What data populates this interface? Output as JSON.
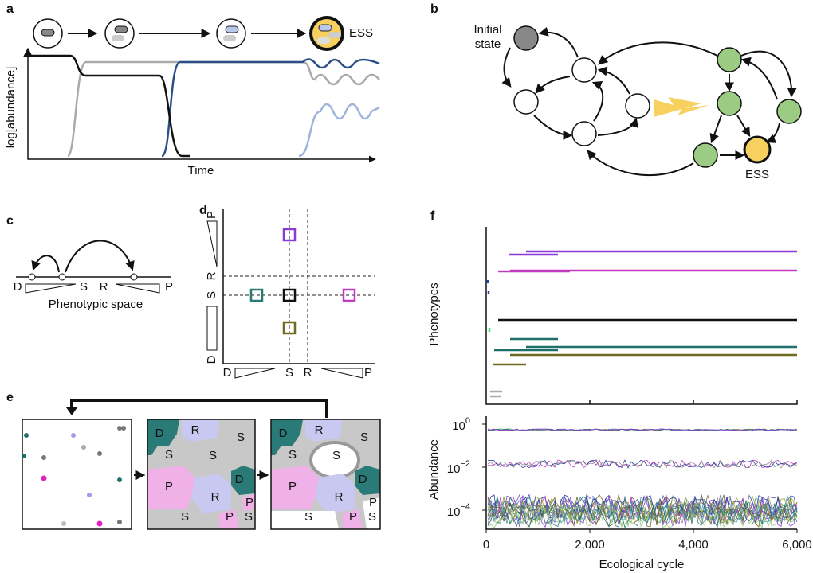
{
  "panels": {
    "a": {
      "label": "a",
      "ess": "ESS",
      "y_axis": "log[abundance]",
      "x_axis": "Time"
    },
    "b": {
      "label": "b",
      "initial_state": [
        "Initial",
        "state"
      ],
      "ess": "ESS"
    },
    "c": {
      "label": "c",
      "letters": [
        "D",
        "S",
        "R",
        "P"
      ],
      "axis": "Phenotypic space"
    },
    "d": {
      "label": "d",
      "y_letters": [
        "P",
        "R",
        "S",
        "D"
      ],
      "x_letters": [
        "D",
        "S",
        "R",
        "P"
      ]
    },
    "e": {
      "label": "e",
      "box2_labels": [
        "D",
        "R",
        "S",
        "S",
        "S",
        "P",
        "D",
        "R",
        "P",
        "S",
        "P",
        "S"
      ],
      "box3_labels": [
        "D",
        "R",
        "S",
        "S",
        "S",
        "P",
        "D",
        "R",
        "P",
        "S",
        "P",
        "S"
      ]
    },
    "f": {
      "label": "f",
      "top_y_axis": "Phenotypes",
      "bottom_y_axis": "Abundance",
      "x_axis": "Ecological cycle",
      "x_ticks": [
        "0",
        "2,000",
        "4,000",
        "6,000"
      ],
      "y_ticks": [
        {
          "base": "10",
          "exponent": "0"
        },
        {
          "base": "10",
          "exponent": "−2"
        },
        {
          "base": "10",
          "exponent": "−4"
        }
      ]
    }
  }
}
